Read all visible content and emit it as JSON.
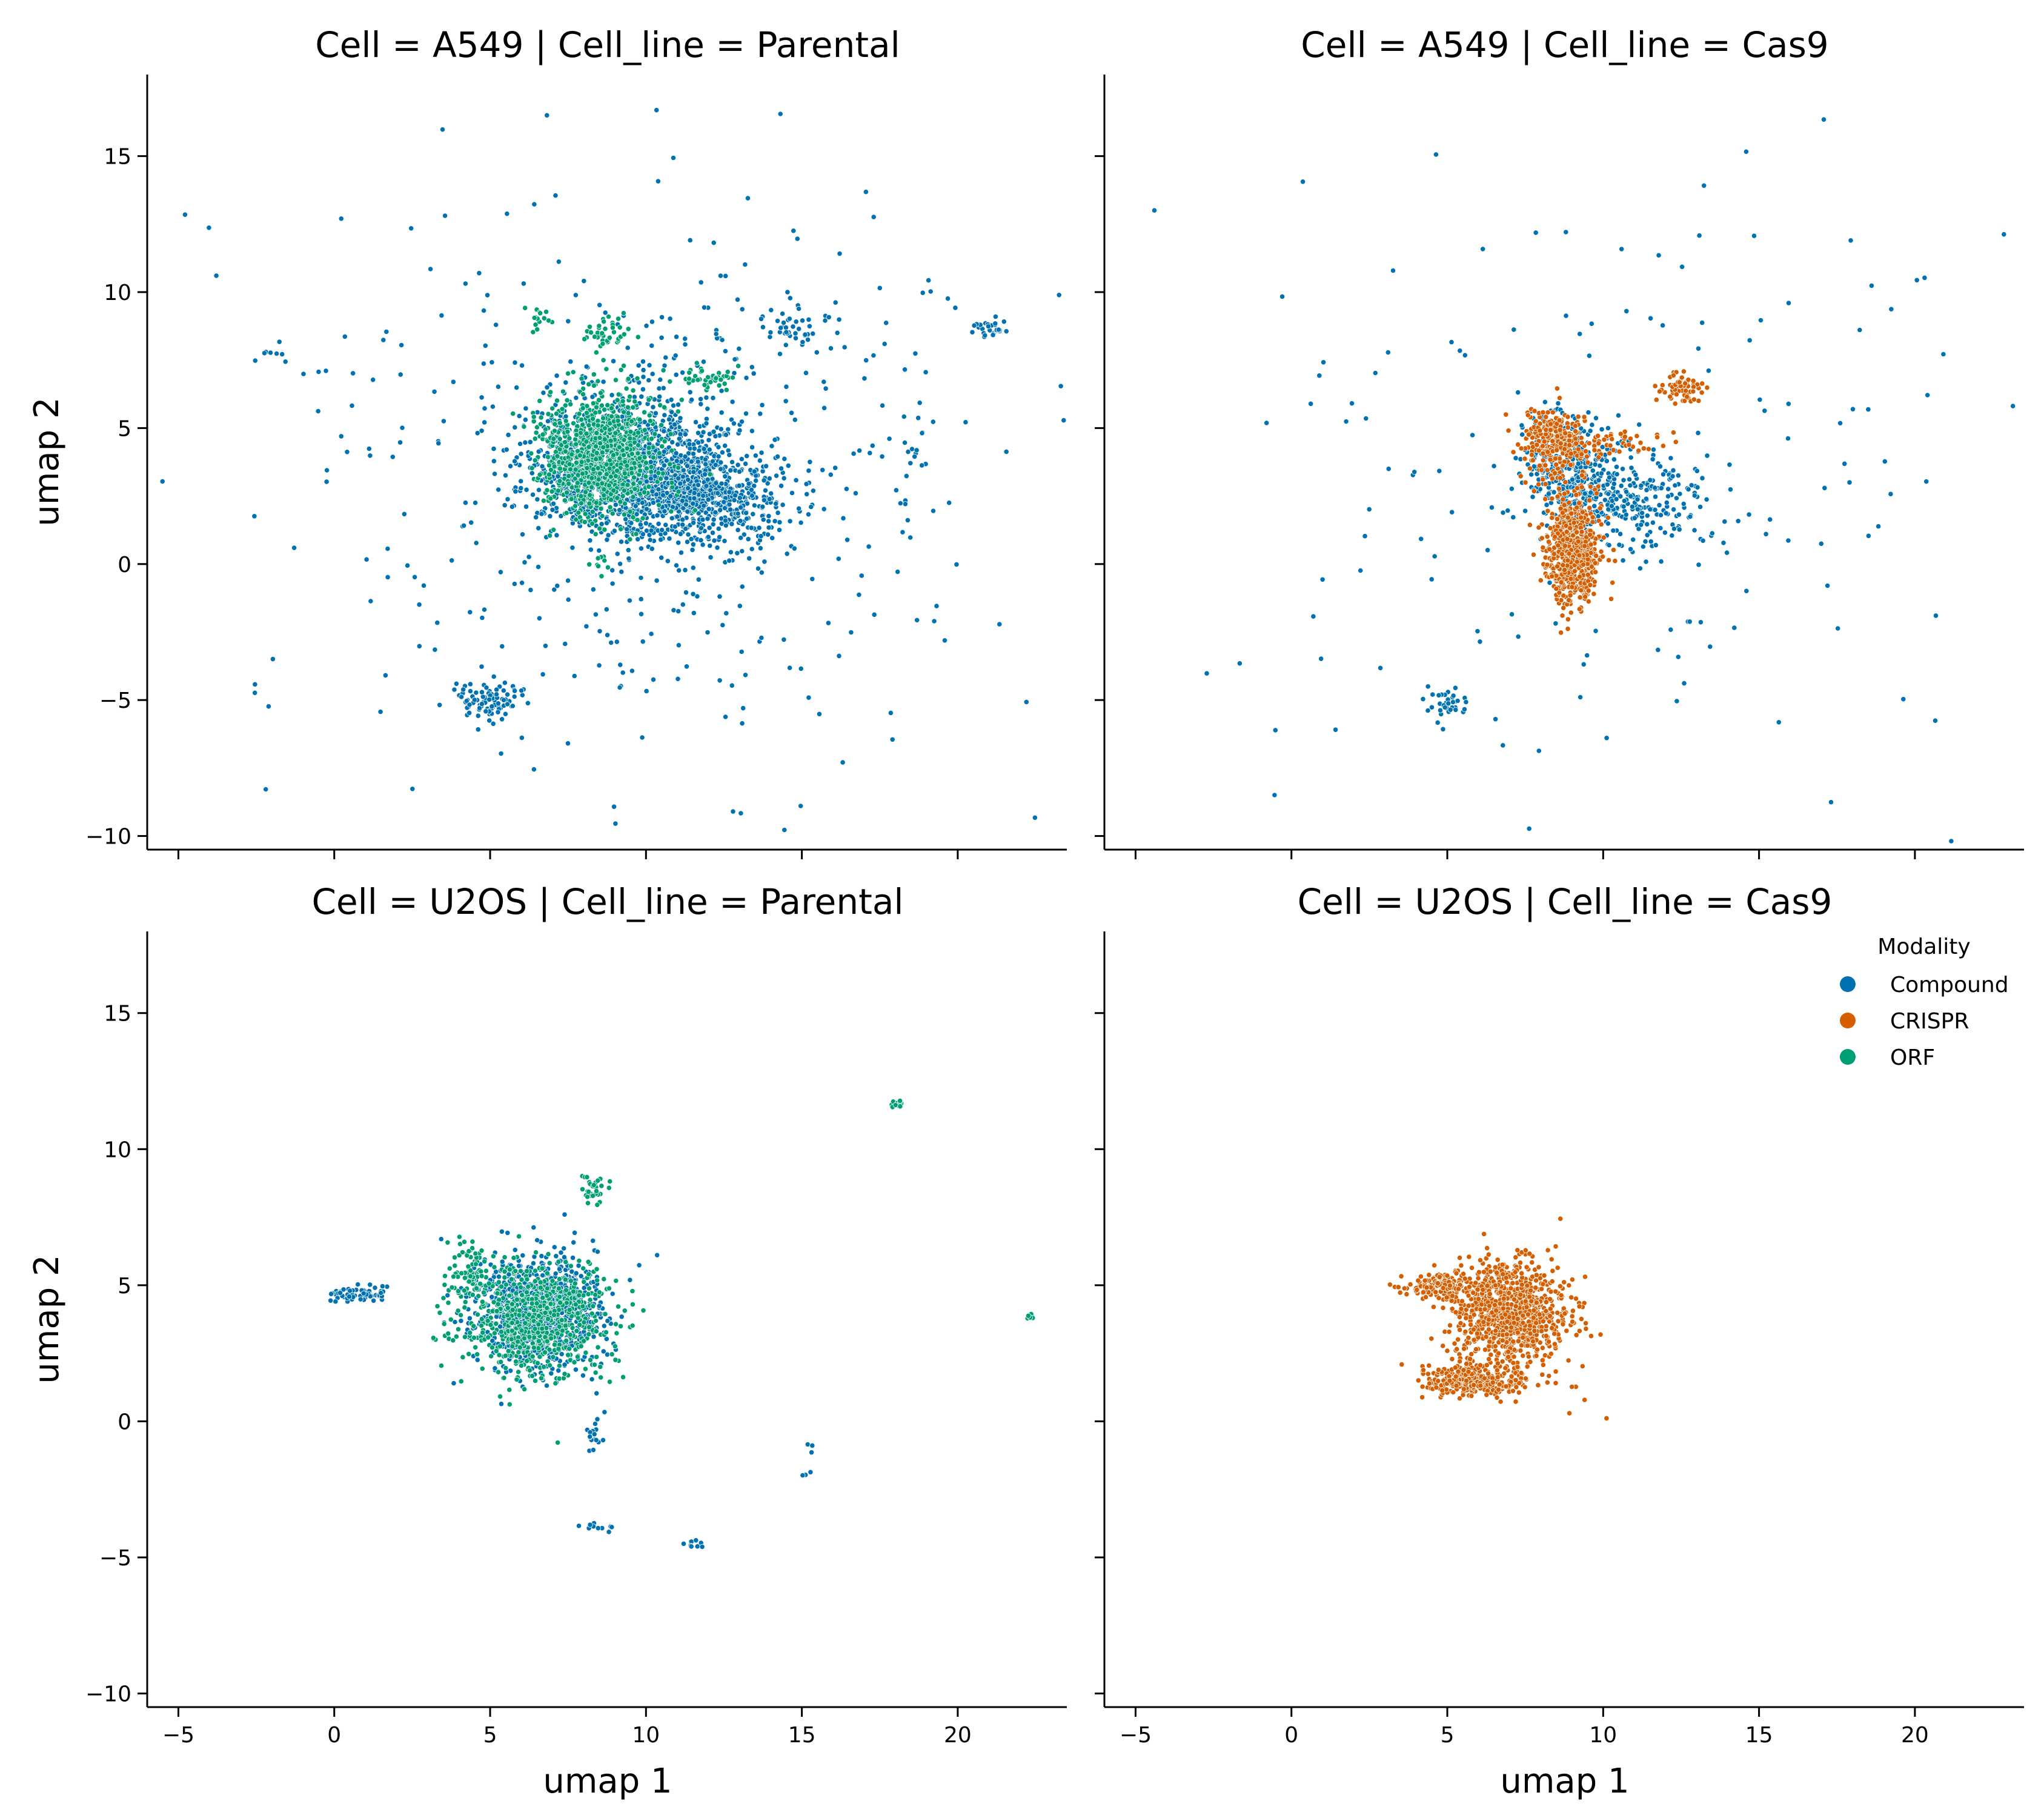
{
  "chart_data": {
    "type": "scatter",
    "layout": "2x2 facet grid, shared axes",
    "grid": false,
    "xlabel": "umap 1",
    "ylabel": "umap 2",
    "xlim": [
      -6,
      23.5
    ],
    "ylim": [
      -10.5,
      18
    ],
    "xticks": [
      -5,
      0,
      5,
      10,
      15,
      20
    ],
    "yticks": [
      -10,
      -5,
      0,
      5,
      10,
      15
    ],
    "legend": {
      "title": "Modality",
      "placement": "right, inside bottom-right panel top",
      "entries": [
        {
          "name": "Compound",
          "color": "#0072b2"
        },
        {
          "name": "CRISPR",
          "color": "#d55e00"
        },
        {
          "name": "ORF",
          "color": "#009e73"
        }
      ]
    },
    "panels": [
      {
        "title": "Cell = A549 | Cell_line = Parental",
        "series": [
          {
            "name": "Compound",
            "clusters": [
              {
                "cx": 9.5,
                "cy": 3.5,
                "sx": 1.5,
                "sy": 1.2,
                "n": 1300
              },
              {
                "cx": 12.0,
                "cy": 2.5,
                "sx": 1.3,
                "sy": 0.9,
                "n": 500
              },
              {
                "cx": 10.0,
                "cy": 3.0,
                "sx": 4.0,
                "sy": 3.5,
                "n": 260
              },
              {
                "cx": 10.0,
                "cy": 3.0,
                "sx": 7.5,
                "sy": 6.5,
                "n": 240
              },
              {
                "cx": 5.0,
                "cy": -5.0,
                "sx": 0.6,
                "sy": 0.35,
                "n": 90
              },
              {
                "cx": 15.0,
                "cy": 8.7,
                "sx": 0.6,
                "sy": 0.5,
                "n": 40
              },
              {
                "cx": 21.0,
                "cy": 8.7,
                "sx": 0.3,
                "sy": 0.15,
                "n": 30
              },
              {
                "cx": 11.0,
                "cy": 6.0,
                "sx": 1.2,
                "sy": 1.5,
                "n": 60
              },
              {
                "cx": -2.0,
                "cy": 7.6,
                "sx": 0.3,
                "sy": 0.2,
                "n": 8
              },
              {
                "cx": 18.5,
                "cy": 4.5,
                "sx": 0.4,
                "sy": 0.6,
                "n": 15
              }
            ]
          },
          {
            "name": "ORF",
            "clusters": [
              {
                "cx": 8.5,
                "cy": 4.0,
                "sx": 0.9,
                "sy": 1.1,
                "n": 1000
              },
              {
                "cx": 8.8,
                "cy": 8.5,
                "sx": 0.4,
                "sy": 0.3,
                "n": 40
              },
              {
                "cx": 12.0,
                "cy": 6.8,
                "sx": 0.4,
                "sy": 0.2,
                "n": 40
              },
              {
                "cx": 6.5,
                "cy": 9.0,
                "sx": 0.25,
                "sy": 0.3,
                "n": 15
              },
              {
                "cx": 8.5,
                "cy": 0.0,
                "sx": 0.15,
                "sy": 0.3,
                "n": 10
              }
            ]
          }
        ]
      },
      {
        "title": "Cell = A549 | Cell_line = Cas9",
        "series": [
          {
            "name": "Compound",
            "clusters": [
              {
                "cx": 9.0,
                "cy": 3.5,
                "sx": 0.8,
                "sy": 1.0,
                "n": 350
              },
              {
                "cx": 11.0,
                "cy": 2.3,
                "sx": 1.3,
                "sy": 0.9,
                "n": 250
              },
              {
                "cx": 10.0,
                "cy": 3.0,
                "sx": 6.5,
                "sy": 6.0,
                "n": 160
              },
              {
                "cx": 5.0,
                "cy": -5.0,
                "sx": 0.35,
                "sy": 0.3,
                "n": 35
              }
            ]
          },
          {
            "name": "CRISPR",
            "clusters": [
              {
                "cx": 9.0,
                "cy": 0.5,
                "sx": 0.45,
                "sy": 1.0,
                "n": 600
              },
              {
                "cx": 8.5,
                "cy": 4.5,
                "sx": 0.6,
                "sy": 0.7,
                "n": 250
              },
              {
                "cx": 12.5,
                "cy": 6.5,
                "sx": 0.35,
                "sy": 0.3,
                "n": 60
              },
              {
                "cx": 10.5,
                "cy": 4.5,
                "sx": 0.8,
                "sy": 0.3,
                "n": 40
              }
            ]
          }
        ]
      },
      {
        "title": "Cell = U2OS | Cell_line = Parental",
        "series": [
          {
            "name": "Compound",
            "clusters": [
              {
                "cx": 6.5,
                "cy": 4.0,
                "sx": 1.0,
                "sy": 1.0,
                "n": 1000
              },
              {
                "cx": 0.8,
                "cy": 4.7,
                "sx": 0.5,
                "sy": 0.15,
                "n": 60
              },
              {
                "cx": 8.3,
                "cy": -0.5,
                "sx": 0.15,
                "sy": 0.5,
                "n": 20
              },
              {
                "cx": 8.5,
                "cy": -3.9,
                "sx": 0.3,
                "sy": 0.1,
                "n": 10
              },
              {
                "cx": 11.5,
                "cy": -4.5,
                "sx": 0.15,
                "sy": 0.1,
                "n": 8
              },
              {
                "cx": 15.3,
                "cy": -1.5,
                "sx": 0.1,
                "sy": 0.5,
                "n": 6
              }
            ]
          },
          {
            "name": "ORF",
            "clusters": [
              {
                "cx": 6.5,
                "cy": 3.7,
                "sx": 1.1,
                "sy": 1.0,
                "n": 700
              },
              {
                "cx": 4.3,
                "cy": 5.5,
                "sx": 0.35,
                "sy": 0.5,
                "n": 80
              },
              {
                "cx": 8.3,
                "cy": 8.6,
                "sx": 0.2,
                "sy": 0.3,
                "n": 30
              },
              {
                "cx": 18.0,
                "cy": 11.7,
                "sx": 0.15,
                "sy": 0.08,
                "n": 10
              },
              {
                "cx": 22.3,
                "cy": 3.9,
                "sx": 0.05,
                "sy": 0.1,
                "n": 6
              }
            ]
          }
        ]
      },
      {
        "title": "Cell = U2OS | Cell_line = Cas9",
        "series": [
          {
            "name": "CRISPR",
            "clusters": [
              {
                "cx": 7.0,
                "cy": 4.0,
                "sx": 0.9,
                "sy": 0.9,
                "n": 900
              },
              {
                "cx": 5.8,
                "cy": 1.5,
                "sx": 0.8,
                "sy": 0.3,
                "n": 300
              },
              {
                "cx": 4.8,
                "cy": 5.0,
                "sx": 0.6,
                "sy": 0.25,
                "n": 150
              },
              {
                "cx": 7.5,
                "cy": 3.0,
                "sx": 1.3,
                "sy": 1.3,
                "n": 60
              }
            ]
          }
        ]
      }
    ]
  }
}
